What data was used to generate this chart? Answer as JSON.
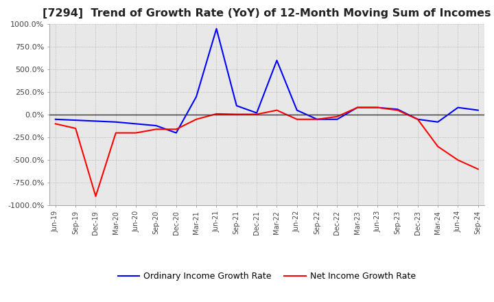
{
  "title": "[7294]  Trend of Growth Rate (YoY) of 12-Month Moving Sum of Incomes",
  "title_fontsize": 11.5,
  "ylim": [
    -1000,
    1000
  ],
  "yticks": [
    -1000,
    -750,
    -500,
    -250,
    0,
    250,
    500,
    750,
    1000
  ],
  "background_color": "#ffffff",
  "plot_bg_color": "#e8e8e8",
  "grid_color": "#aaaaaa",
  "legend_labels": [
    "Ordinary Income Growth Rate",
    "Net Income Growth Rate"
  ],
  "legend_colors": [
    "#0000ff",
    "#ff0000"
  ],
  "x_labels": [
    "Jun-19",
    "Sep-19",
    "Dec-19",
    "Mar-20",
    "Jun-20",
    "Sep-20",
    "Dec-20",
    "Mar-21",
    "Jun-21",
    "Sep-21",
    "Dec-21",
    "Mar-22",
    "Jun-22",
    "Sep-22",
    "Dec-22",
    "Mar-23",
    "Jun-23",
    "Sep-23",
    "Dec-23",
    "Mar-24",
    "Jun-24",
    "Sep-24"
  ],
  "ordinary_income_growth": [
    -50,
    -60,
    -70,
    -80,
    -100,
    -120,
    -200,
    200,
    950,
    100,
    20,
    600,
    50,
    -50,
    -50,
    80,
    80,
    60,
    -50,
    -80,
    80,
    50
  ],
  "net_income_growth": [
    -100,
    -150,
    -900,
    -200,
    -200,
    -160,
    -160,
    -50,
    10,
    5,
    5,
    50,
    -50,
    -50,
    -20,
    80,
    80,
    50,
    -50,
    -350,
    -500,
    -600
  ]
}
